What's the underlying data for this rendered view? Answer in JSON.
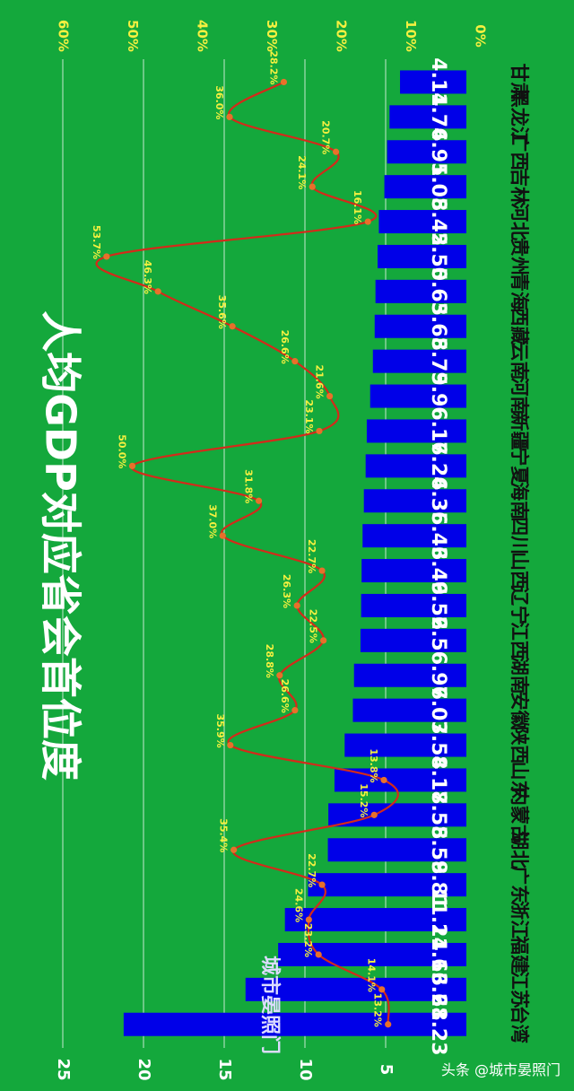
{
  "chart_data": {
    "type": "bar",
    "title": "人均GDP对应省会首位度",
    "categories": [
      "甘肃",
      "黑龙江",
      "广西",
      "吉林",
      "河北",
      "贵州",
      "青海",
      "西藏",
      "云南",
      "河南",
      "新疆",
      "宁夏",
      "海南",
      "四川",
      "山西",
      "辽宁",
      "江西",
      "湖南",
      "安徽",
      "陕西",
      "山东",
      "内蒙古",
      "湖北",
      "广东",
      "浙江",
      "福建",
      "江苏",
      "台湾"
    ],
    "series": [
      {
        "values": [
          4.11,
          4.76,
          4.91,
          5.08,
          5.42,
          5.5,
          5.63,
          5.68,
          5.79,
          5.96,
          6.17,
          6.24,
          6.35,
          6.43,
          6.49,
          6.52,
          6.56,
          6.96,
          7.03,
          7.54,
          8.17,
          8.55,
          8.58,
          9.81,
          11.24,
          11.66,
          13.68,
          21.23
        ]
      },
      {
        "values": [
          28.2,
          36.0,
          20.7,
          24.1,
          16.1,
          53.7,
          46.3,
          35.6,
          26.6,
          21.6,
          23.1,
          50.0,
          31.8,
          37.0,
          22.7,
          26.3,
          22.5,
          28.8,
          26.6,
          35.9,
          13.8,
          15.2,
          35.4,
          22.7,
          24.6,
          23.2,
          14.1,
          13.2
        ]
      }
    ],
    "value_labels": [
      "4.11",
      "4.76",
      "4.91",
      "5.08",
      "5.42",
      "5.50",
      "5.63",
      "5.68",
      "5.79",
      "5.96",
      "6.17",
      "6.24",
      "6.35",
      "6.43",
      "6.49",
      "6.52",
      "6.56",
      "6.96",
      "7.03",
      "7.54",
      "8.17",
      "8.55",
      "8.58",
      "9.81",
      "11.24",
      "11.66",
      "13.68",
      "21.23"
    ],
    "pct_labels": [
      "28.2%",
      "36.0%",
      "20.7%",
      "24.1%",
      "16.1%",
      "53.7%",
      "46.3%",
      "35.6%",
      "26.6%",
      "21.6%",
      "23.1%",
      "50.0%",
      "31.8%",
      "37.0%",
      "22.7%",
      "26.3%",
      "22.5%",
      "28.8%",
      "26.6%",
      "35.9%",
      "13.8%",
      "15.2%",
      "35.4%",
      "22.7%",
      "24.6%",
      "23.2%",
      "14.1%",
      "13.2%"
    ],
    "axis_left_ticks": [
      "5",
      "10",
      "15",
      "20",
      "25"
    ],
    "axis_left_values": [
      5,
      10,
      15,
      20,
      25
    ],
    "axis_right_ticks": [
      "0%",
      "10%",
      "20%",
      "30%",
      "40%",
      "50%",
      "60%"
    ],
    "axis_right_values": [
      0,
      10,
      20,
      30,
      40,
      50,
      60
    ],
    "axis_left_range": [
      0,
      25
    ],
    "axis_right_range": [
      0,
      60
    ],
    "grid": true,
    "colors": {
      "background": "#14a83c",
      "bar": "#0000e8",
      "line": "#d42a1a",
      "marker": "#e8702a",
      "pct_text": "#f4f040"
    }
  },
  "watermark": "城市晏照门",
  "footer": "头条 @城市晏照门"
}
